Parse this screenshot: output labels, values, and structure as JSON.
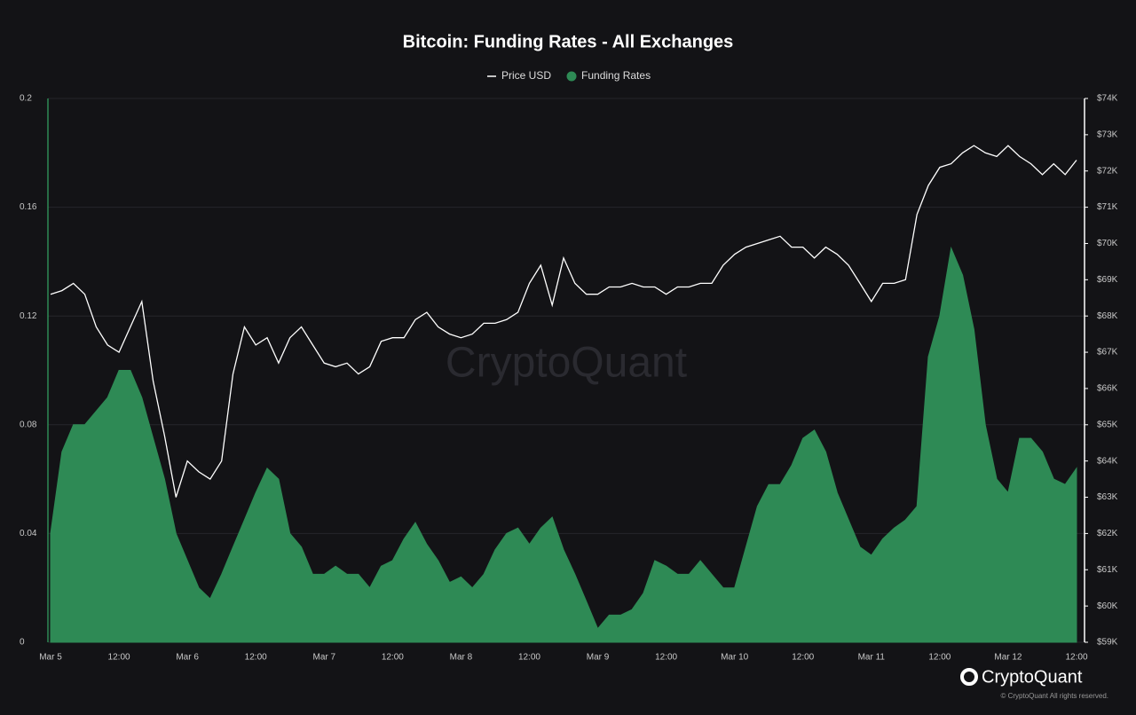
{
  "chart_data": {
    "type": "line",
    "title": "Bitcoin: Funding Rates - All Exchanges",
    "categories": [
      "Mar 5",
      null,
      null,
      null,
      null,
      null,
      "12:00",
      null,
      null,
      null,
      null,
      null,
      "Mar 6",
      null,
      null,
      null,
      null,
      null,
      "12:00",
      null,
      null,
      null,
      null,
      null,
      "Mar 7",
      null,
      null,
      null,
      null,
      null,
      "12:00",
      null,
      null,
      null,
      null,
      null,
      "Mar 8",
      null,
      null,
      null,
      null,
      null,
      "12:00",
      null,
      null,
      null,
      null,
      null,
      "Mar 9",
      null,
      null,
      null,
      null,
      null,
      "12:00",
      null,
      null,
      null,
      null,
      null,
      "Mar 10",
      null,
      null,
      null,
      null,
      null,
      "12:00",
      null,
      null,
      null,
      null,
      null,
      "Mar 11",
      null,
      null,
      null,
      null,
      null,
      "12:00",
      null,
      null,
      null,
      null,
      null,
      "Mar 12",
      null,
      null,
      null,
      null,
      null,
      "12:00"
    ],
    "series": [
      {
        "name": "Funding Rates",
        "color": "#2e8a55",
        "kind": "area",
        "axis": "y",
        "values": [
          0.04,
          0.07,
          0.08,
          0.08,
          0.085,
          0.09,
          0.1,
          0.1,
          0.09,
          0.075,
          0.06,
          0.04,
          0.03,
          0.02,
          0.016,
          0.025,
          0.035,
          0.045,
          0.055,
          0.064,
          0.06,
          0.04,
          0.035,
          0.025,
          0.025,
          0.028,
          0.025,
          0.025,
          0.02,
          0.028,
          0.03,
          0.038,
          0.044,
          0.036,
          0.03,
          0.022,
          0.024,
          0.02,
          0.025,
          0.034,
          0.04,
          0.042,
          0.036,
          0.042,
          0.046,
          0.034,
          0.025,
          0.015,
          0.005,
          0.01,
          0.01,
          0.012,
          0.018,
          0.03,
          0.028,
          0.025,
          0.025,
          0.03,
          0.025,
          0.02,
          0.02,
          0.035,
          0.05,
          0.058,
          0.058,
          0.065,
          0.075,
          0.078,
          0.07,
          0.055,
          0.045,
          0.035,
          0.032,
          0.038,
          0.042,
          0.045,
          0.05,
          0.105,
          0.12,
          0.145,
          0.135,
          0.115,
          0.08,
          0.06,
          0.055,
          0.075,
          0.075,
          0.07,
          0.06,
          0.058,
          0.064
        ]
      },
      {
        "name": "Price USD",
        "color": "#ffffff",
        "kind": "line",
        "axis": "y2",
        "values": [
          68.6,
          68.7,
          68.9,
          68.6,
          67.7,
          67.2,
          67.0,
          67.7,
          68.4,
          66.2,
          64.7,
          63.0,
          64.0,
          63.7,
          63.5,
          64.0,
          66.4,
          67.7,
          67.2,
          67.4,
          66.7,
          67.4,
          67.7,
          67.2,
          66.7,
          66.6,
          66.7,
          66.4,
          66.6,
          67.3,
          67.4,
          67.4,
          67.9,
          68.1,
          67.7,
          67.5,
          67.4,
          67.5,
          67.8,
          67.8,
          67.9,
          68.1,
          68.9,
          69.4,
          68.3,
          69.6,
          68.9,
          68.6,
          68.6,
          68.8,
          68.8,
          68.9,
          68.8,
          68.8,
          68.6,
          68.8,
          68.8,
          68.9,
          68.9,
          69.4,
          69.7,
          69.9,
          70.0,
          70.1,
          70.2,
          69.9,
          69.9,
          69.6,
          69.9,
          69.7,
          69.4,
          68.9,
          68.4,
          68.9,
          68.9,
          69.0,
          70.8,
          71.6,
          72.1,
          72.2,
          72.5,
          72.7,
          72.5,
          72.4,
          72.7,
          72.4,
          72.2,
          71.9,
          72.2,
          71.9,
          72.3
        ]
      }
    ],
    "ylim": [
      0,
      0.2
    ],
    "yticks": [
      0,
      0.04,
      0.08,
      0.12,
      0.16,
      0.2
    ],
    "y2lim": [
      59,
      74
    ],
    "y2ticks": [
      {
        "value": 59,
        "label": "$59K"
      },
      {
        "value": 60,
        "label": "$60K"
      },
      {
        "value": 61,
        "label": "$61K"
      },
      {
        "value": 62,
        "label": "$62K"
      },
      {
        "value": 63,
        "label": "$63K"
      },
      {
        "value": 64,
        "label": "$64K"
      },
      {
        "value": 65,
        "label": "$65K"
      },
      {
        "value": 66,
        "label": "$66K"
      },
      {
        "value": 67,
        "label": "$67K"
      },
      {
        "value": 68,
        "label": "$68K"
      },
      {
        "value": 69,
        "label": "$69K"
      },
      {
        "value": 70,
        "label": "$70K"
      },
      {
        "value": 71,
        "label": "$71K"
      },
      {
        "value": 72,
        "label": "$72K"
      },
      {
        "value": 73,
        "label": "$73K"
      },
      {
        "value": 74,
        "label": "$74K"
      }
    ],
    "grid": true,
    "legend": "top"
  },
  "watermark": "CryptoQuant",
  "brand": "CryptoQuant",
  "copyright": "© CryptoQuant All rights reserved."
}
